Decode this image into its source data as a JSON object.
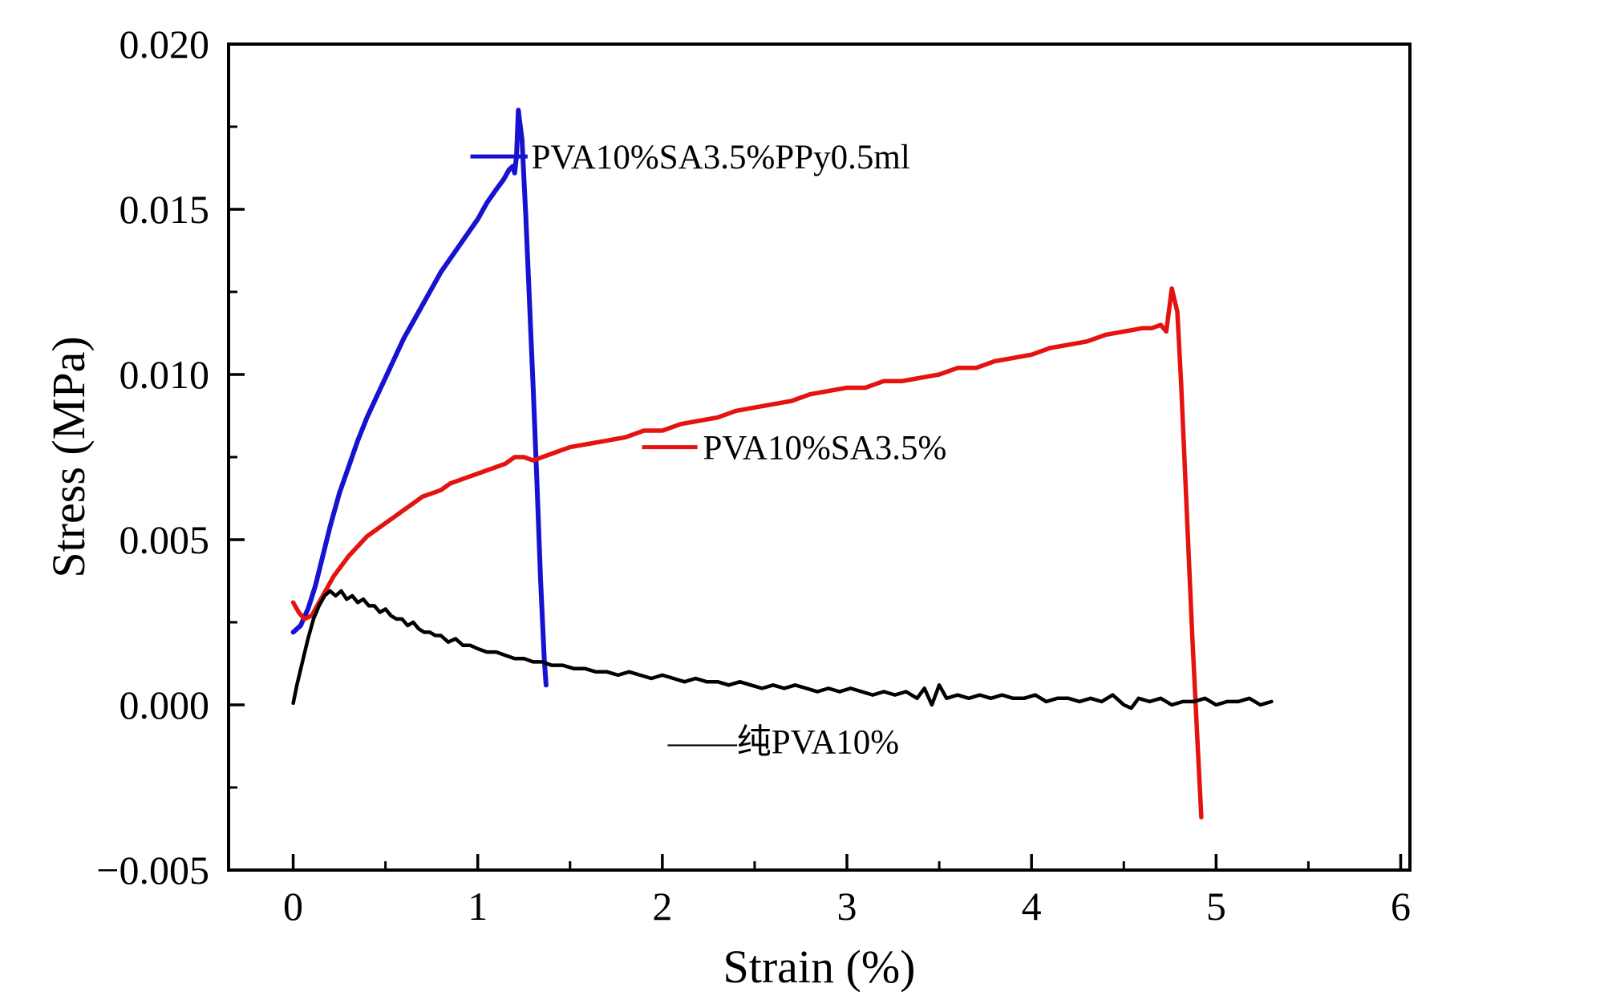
{
  "figure": {
    "background": "#ffffff",
    "axis_color": "#000000"
  },
  "chart_data": {
    "type": "line",
    "title": "",
    "xlabel": "Strain (%)",
    "ylabel": "Stress (MPa)",
    "xlim": [
      -0.35,
      6.05
    ],
    "ylim": [
      -0.005,
      0.02
    ],
    "grid": false,
    "legend_position": "inline-annotations",
    "xticks": [
      {
        "v": 0,
        "label": "0"
      },
      {
        "v": 1,
        "label": "1"
      },
      {
        "v": 2,
        "label": "2"
      },
      {
        "v": 3,
        "label": "3"
      },
      {
        "v": 4,
        "label": "4"
      },
      {
        "v": 5,
        "label": "5"
      },
      {
        "v": 6,
        "label": "6"
      }
    ],
    "yticks": [
      {
        "v": -0.005,
        "label": "−0.005"
      },
      {
        "v": 0.0,
        "label": "0.000"
      },
      {
        "v": 0.005,
        "label": "0.005"
      },
      {
        "v": 0.01,
        "label": "0.010"
      },
      {
        "v": 0.015,
        "label": "0.015"
      },
      {
        "v": 0.02,
        "label": "0.020"
      }
    ],
    "series": [
      {
        "name": "PVA10%SA3.5%PPy0.5ml",
        "color": "#1712d0",
        "width": 6,
        "points": [
          [
            0.0,
            0.0022
          ],
          [
            0.04,
            0.0024
          ],
          [
            0.08,
            0.0029
          ],
          [
            0.12,
            0.0036
          ],
          [
            0.16,
            0.0045
          ],
          [
            0.2,
            0.0054
          ],
          [
            0.25,
            0.0064
          ],
          [
            0.3,
            0.0072
          ],
          [
            0.35,
            0.008
          ],
          [
            0.4,
            0.0087
          ],
          [
            0.45,
            0.0093
          ],
          [
            0.5,
            0.0099
          ],
          [
            0.55,
            0.0105
          ],
          [
            0.6,
            0.0111
          ],
          [
            0.65,
            0.0116
          ],
          [
            0.7,
            0.0121
          ],
          [
            0.75,
            0.0126
          ],
          [
            0.8,
            0.0131
          ],
          [
            0.85,
            0.0135
          ],
          [
            0.9,
            0.0139
          ],
          [
            0.95,
            0.0143
          ],
          [
            1.0,
            0.0147
          ],
          [
            1.05,
            0.0152
          ],
          [
            1.1,
            0.0156
          ],
          [
            1.14,
            0.0159
          ],
          [
            1.17,
            0.0162
          ],
          [
            1.19,
            0.0163
          ],
          [
            1.2,
            0.0161
          ],
          [
            1.21,
            0.0166
          ],
          [
            1.22,
            0.018
          ],
          [
            1.24,
            0.0171
          ],
          [
            1.26,
            0.0148
          ],
          [
            1.28,
            0.0122
          ],
          [
            1.3,
            0.0096
          ],
          [
            1.32,
            0.0068
          ],
          [
            1.34,
            0.0038
          ],
          [
            1.36,
            0.0014
          ],
          [
            1.37,
            0.0006
          ]
        ]
      },
      {
        "name": "PVA10%SA3.5%",
        "color": "#e41310",
        "width": 5.5,
        "points": [
          [
            0.0,
            0.0031
          ],
          [
            0.03,
            0.0028
          ],
          [
            0.06,
            0.0026
          ],
          [
            0.1,
            0.0027
          ],
          [
            0.14,
            0.0031
          ],
          [
            0.18,
            0.0035
          ],
          [
            0.22,
            0.0039
          ],
          [
            0.26,
            0.0042
          ],
          [
            0.3,
            0.0045
          ],
          [
            0.35,
            0.0048
          ],
          [
            0.4,
            0.0051
          ],
          [
            0.45,
            0.0053
          ],
          [
            0.5,
            0.0055
          ],
          [
            0.55,
            0.0057
          ],
          [
            0.6,
            0.0059
          ],
          [
            0.65,
            0.0061
          ],
          [
            0.7,
            0.0063
          ],
          [
            0.75,
            0.0064
          ],
          [
            0.8,
            0.0065
          ],
          [
            0.85,
            0.0067
          ],
          [
            0.9,
            0.0068
          ],
          [
            0.95,
            0.0069
          ],
          [
            1.0,
            0.007
          ],
          [
            1.05,
            0.0071
          ],
          [
            1.1,
            0.0072
          ],
          [
            1.15,
            0.0073
          ],
          [
            1.2,
            0.0075
          ],
          [
            1.25,
            0.0075
          ],
          [
            1.3,
            0.0074
          ],
          [
            1.35,
            0.0075
          ],
          [
            1.4,
            0.0076
          ],
          [
            1.5,
            0.0078
          ],
          [
            1.6,
            0.0079
          ],
          [
            1.7,
            0.008
          ],
          [
            1.8,
            0.0081
          ],
          [
            1.9,
            0.0083
          ],
          [
            2.0,
            0.0083
          ],
          [
            2.1,
            0.0085
          ],
          [
            2.2,
            0.0086
          ],
          [
            2.3,
            0.0087
          ],
          [
            2.4,
            0.0089
          ],
          [
            2.5,
            0.009
          ],
          [
            2.6,
            0.0091
          ],
          [
            2.7,
            0.0092
          ],
          [
            2.8,
            0.0094
          ],
          [
            2.9,
            0.0095
          ],
          [
            3.0,
            0.0096
          ],
          [
            3.1,
            0.0096
          ],
          [
            3.2,
            0.0098
          ],
          [
            3.3,
            0.0098
          ],
          [
            3.4,
            0.0099
          ],
          [
            3.5,
            0.01
          ],
          [
            3.6,
            0.0102
          ],
          [
            3.7,
            0.0102
          ],
          [
            3.8,
            0.0104
          ],
          [
            3.9,
            0.0105
          ],
          [
            4.0,
            0.0106
          ],
          [
            4.1,
            0.0108
          ],
          [
            4.2,
            0.0109
          ],
          [
            4.3,
            0.011
          ],
          [
            4.4,
            0.0112
          ],
          [
            4.5,
            0.0113
          ],
          [
            4.6,
            0.0114
          ],
          [
            4.65,
            0.0114
          ],
          [
            4.7,
            0.0115
          ],
          [
            4.73,
            0.0113
          ],
          [
            4.76,
            0.0126
          ],
          [
            4.79,
            0.0119
          ],
          [
            4.81,
            0.0098
          ],
          [
            4.84,
            0.006
          ],
          [
            4.87,
            0.0022
          ],
          [
            4.9,
            -0.0012
          ],
          [
            4.92,
            -0.0034
          ]
        ]
      },
      {
        "name": "纯PVA10%",
        "color": "#000000",
        "width": 4.5,
        "points": [
          [
            0.0,
            5e-05
          ],
          [
            0.02,
            0.0006
          ],
          [
            0.05,
            0.0013
          ],
          [
            0.08,
            0.002
          ],
          [
            0.11,
            0.0026
          ],
          [
            0.14,
            0.003
          ],
          [
            0.17,
            0.0033
          ],
          [
            0.2,
            0.00345
          ],
          [
            0.23,
            0.0033
          ],
          [
            0.26,
            0.00345
          ],
          [
            0.29,
            0.0032
          ],
          [
            0.32,
            0.0033
          ],
          [
            0.35,
            0.0031
          ],
          [
            0.38,
            0.0032
          ],
          [
            0.41,
            0.003
          ],
          [
            0.44,
            0.003
          ],
          [
            0.47,
            0.0028
          ],
          [
            0.5,
            0.0029
          ],
          [
            0.53,
            0.0027
          ],
          [
            0.56,
            0.0026
          ],
          [
            0.59,
            0.0026
          ],
          [
            0.62,
            0.0024
          ],
          [
            0.65,
            0.0025
          ],
          [
            0.68,
            0.0023
          ],
          [
            0.71,
            0.0022
          ],
          [
            0.74,
            0.0022
          ],
          [
            0.77,
            0.0021
          ],
          [
            0.8,
            0.0021
          ],
          [
            0.84,
            0.0019
          ],
          [
            0.88,
            0.002
          ],
          [
            0.92,
            0.0018
          ],
          [
            0.96,
            0.0018
          ],
          [
            1.0,
            0.0017
          ],
          [
            1.05,
            0.0016
          ],
          [
            1.1,
            0.0016
          ],
          [
            1.15,
            0.0015
          ],
          [
            1.2,
            0.0014
          ],
          [
            1.25,
            0.0014
          ],
          [
            1.3,
            0.0013
          ],
          [
            1.35,
            0.0013
          ],
          [
            1.4,
            0.0012
          ],
          [
            1.46,
            0.0012
          ],
          [
            1.52,
            0.0011
          ],
          [
            1.58,
            0.0011
          ],
          [
            1.64,
            0.001
          ],
          [
            1.7,
            0.001
          ],
          [
            1.76,
            0.0009
          ],
          [
            1.82,
            0.001
          ],
          [
            1.88,
            0.0009
          ],
          [
            1.94,
            0.0008
          ],
          [
            2.0,
            0.0009
          ],
          [
            2.06,
            0.0008
          ],
          [
            2.12,
            0.0007
          ],
          [
            2.18,
            0.0008
          ],
          [
            2.24,
            0.0007
          ],
          [
            2.3,
            0.0007
          ],
          [
            2.36,
            0.0006
          ],
          [
            2.42,
            0.0007
          ],
          [
            2.48,
            0.0006
          ],
          [
            2.54,
            0.0005
          ],
          [
            2.6,
            0.0006
          ],
          [
            2.66,
            0.0005
          ],
          [
            2.72,
            0.0006
          ],
          [
            2.78,
            0.0005
          ],
          [
            2.84,
            0.0004
          ],
          [
            2.9,
            0.0005
          ],
          [
            2.96,
            0.0004
          ],
          [
            3.02,
            0.0005
          ],
          [
            3.08,
            0.0004
          ],
          [
            3.14,
            0.0003
          ],
          [
            3.2,
            0.0004
          ],
          [
            3.26,
            0.0003
          ],
          [
            3.32,
            0.0004
          ],
          [
            3.38,
            0.0002
          ],
          [
            3.42,
            0.0005
          ],
          [
            3.46,
            0.0
          ],
          [
            3.5,
            0.0006
          ],
          [
            3.54,
            0.0002
          ],
          [
            3.6,
            0.0003
          ],
          [
            3.66,
            0.0002
          ],
          [
            3.72,
            0.0003
          ],
          [
            3.78,
            0.0002
          ],
          [
            3.84,
            0.0003
          ],
          [
            3.9,
            0.0002
          ],
          [
            3.96,
            0.0002
          ],
          [
            4.02,
            0.0003
          ],
          [
            4.08,
            0.0001
          ],
          [
            4.14,
            0.0002
          ],
          [
            4.2,
            0.0002
          ],
          [
            4.26,
            0.0001
          ],
          [
            4.32,
            0.0002
          ],
          [
            4.38,
            0.0001
          ],
          [
            4.44,
            0.0003
          ],
          [
            4.5,
            0.0
          ],
          [
            4.54,
            -0.0001
          ],
          [
            4.58,
            0.0002
          ],
          [
            4.64,
            0.0001
          ],
          [
            4.7,
            0.0002
          ],
          [
            4.76,
            0.0
          ],
          [
            4.82,
            0.0001
          ],
          [
            4.88,
            0.0001
          ],
          [
            4.94,
            0.0002
          ],
          [
            5.0,
            0.0
          ],
          [
            5.06,
            0.0001
          ],
          [
            5.12,
            0.0001
          ],
          [
            5.18,
            0.0002
          ],
          [
            5.24,
            0.0
          ],
          [
            5.3,
            0.0001
          ]
        ]
      }
    ],
    "annotations": [
      {
        "text": "PVA10%SA3.5%PPy0.5ml",
        "x": 1.29,
        "y": 0.0166,
        "color": "#000000",
        "sample_line": {
          "x1": 0.96,
          "x2": 1.27,
          "y": 0.0166,
          "color": "#1712d0"
        }
      },
      {
        "text": "PVA10%SA3.5%",
        "x": 2.22,
        "y": 0.0078,
        "color": "#000000",
        "sample_line": {
          "x1": 1.89,
          "x2": 2.19,
          "y": 0.0078,
          "color": "#e41310"
        }
      },
      {
        "text": "——纯PVA10%",
        "x": 2.03,
        "y": -0.0011,
        "color": "#000000",
        "sample_line": null
      }
    ]
  }
}
